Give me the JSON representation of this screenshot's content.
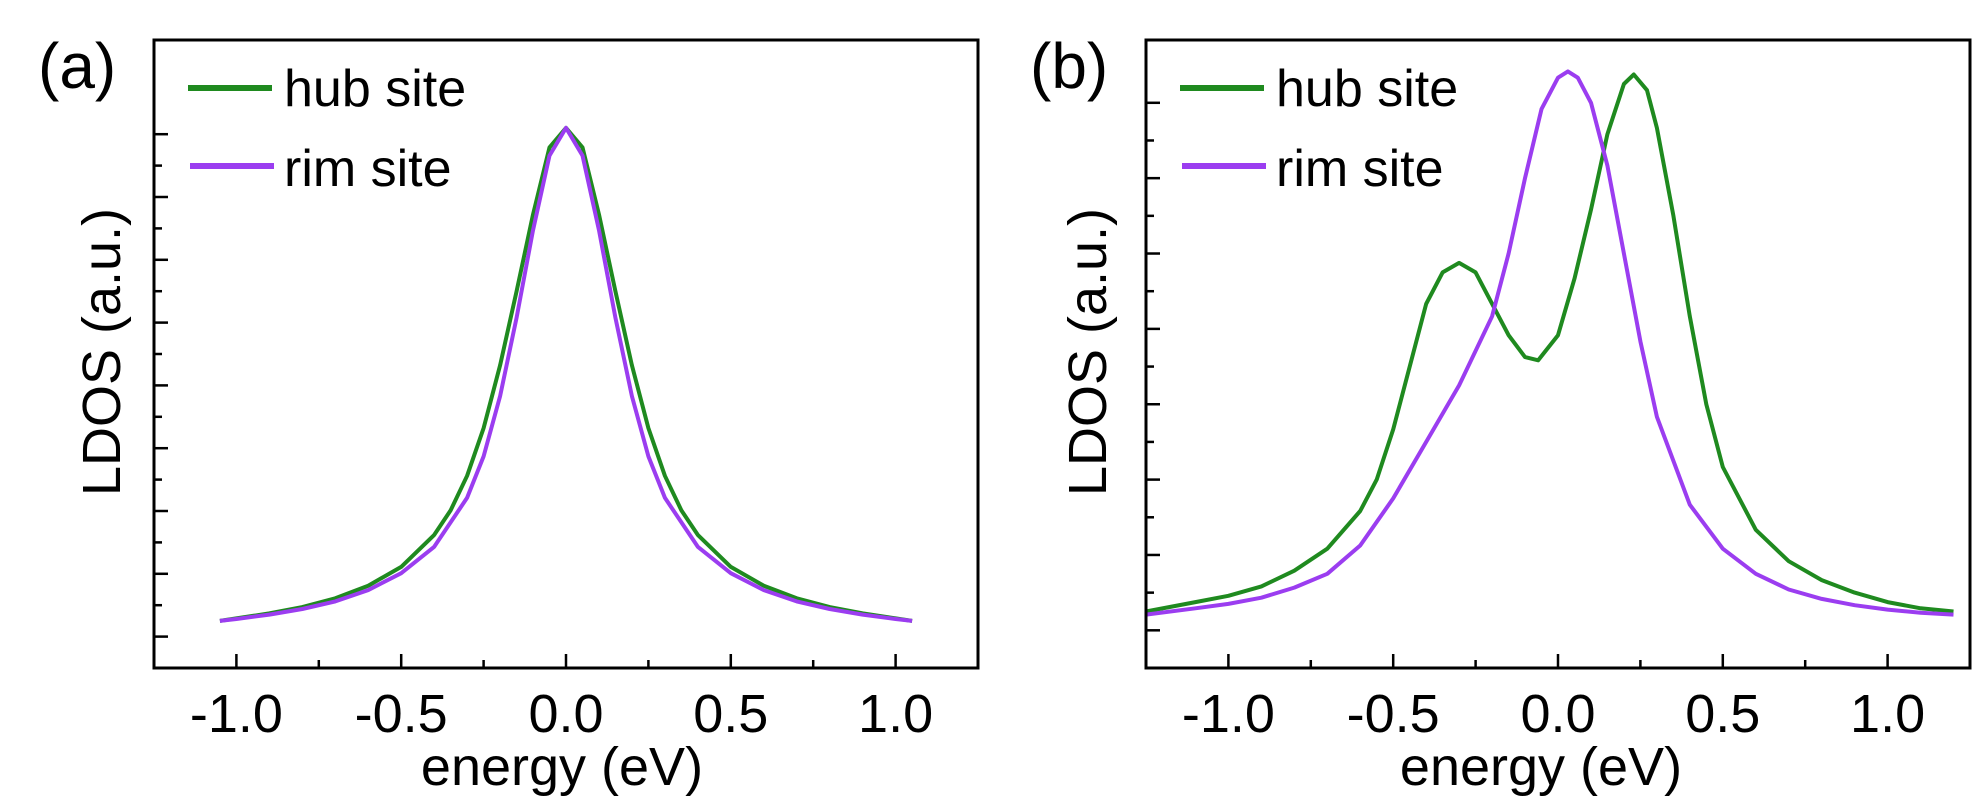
{
  "chart_data": [
    {
      "type": "line",
      "panel_label": "(a)",
      "xlabel": "energy (eV)",
      "ylabel": "LDOS (a.u.)",
      "xlim": [
        -1.25,
        1.25
      ],
      "ylim": [
        0.0,
        1.0
      ],
      "x_ticks": [
        -1.0,
        -0.5,
        0.0,
        0.5,
        1.0
      ],
      "x_tick_labels": [
        "-1.0",
        "-0.5",
        "0.0",
        "0.5",
        "1.0"
      ],
      "y_ticks": [
        0.05,
        0.15,
        0.25,
        0.35,
        0.45,
        0.55,
        0.65,
        0.75,
        0.85
      ],
      "legend_position": "top-left",
      "series": [
        {
          "name": "hub site",
          "color": "#1f8a1f",
          "x": [
            -1.05,
            -1.0,
            -0.9,
            -0.8,
            -0.7,
            -0.6,
            -0.5,
            -0.4,
            -0.35,
            -0.3,
            -0.25,
            -0.2,
            -0.15,
            -0.1,
            -0.05,
            0.0,
            0.05,
            0.1,
            0.15,
            0.2,
            0.25,
            0.3,
            0.35,
            0.4,
            0.5,
            0.6,
            0.7,
            0.8,
            0.9,
            1.0,
            1.05
          ],
          "y": [
            0.075,
            0.079,
            0.087,
            0.097,
            0.111,
            0.131,
            0.161,
            0.212,
            0.251,
            0.306,
            0.382,
            0.482,
            0.6,
            0.722,
            0.829,
            0.86,
            0.829,
            0.722,
            0.6,
            0.482,
            0.382,
            0.306,
            0.251,
            0.212,
            0.161,
            0.131,
            0.111,
            0.097,
            0.087,
            0.079,
            0.075
          ]
        },
        {
          "name": "rim site",
          "color": "#9b3df0",
          "x": [
            -1.05,
            -1.0,
            -0.9,
            -0.8,
            -0.7,
            -0.6,
            -0.5,
            -0.4,
            -0.3,
            -0.25,
            -0.2,
            -0.15,
            -0.1,
            -0.05,
            0.0,
            0.05,
            0.1,
            0.15,
            0.2,
            0.25,
            0.3,
            0.4,
            0.5,
            0.6,
            0.7,
            0.8,
            0.9,
            1.0,
            1.05
          ],
          "y": [
            0.075,
            0.078,
            0.085,
            0.094,
            0.106,
            0.124,
            0.151,
            0.193,
            0.271,
            0.337,
            0.433,
            0.558,
            0.697,
            0.816,
            0.86,
            0.816,
            0.697,
            0.558,
            0.433,
            0.337,
            0.271,
            0.193,
            0.151,
            0.124,
            0.106,
            0.094,
            0.085,
            0.078,
            0.075
          ]
        }
      ]
    },
    {
      "type": "line",
      "panel_label": "(b)",
      "xlabel": "energy (eV)",
      "ylabel": "LDOS (a.u.)",
      "xlim": [
        -1.25,
        1.25
      ],
      "ylim": [
        0.0,
        1.0
      ],
      "x_ticks": [
        -1.0,
        -0.5,
        0.0,
        0.5,
        1.0
      ],
      "x_tick_labels": [
        "-1.0",
        "-0.5",
        "0.0",
        "0.5",
        "1.0"
      ],
      "y_ticks": [
        0.06,
        0.18,
        0.3,
        0.42,
        0.54,
        0.66,
        0.78,
        0.9
      ],
      "legend_position": "top-left",
      "series": [
        {
          "name": "hub site",
          "color": "#1f8a1f",
          "x": [
            -1.25,
            -1.1,
            -1.0,
            -0.9,
            -0.8,
            -0.7,
            -0.6,
            -0.55,
            -0.5,
            -0.45,
            -0.4,
            -0.35,
            -0.3,
            -0.25,
            -0.2,
            -0.15,
            -0.1,
            -0.06,
            0.0,
            0.05,
            0.1,
            0.15,
            0.2,
            0.23,
            0.27,
            0.3,
            0.35,
            0.4,
            0.45,
            0.5,
            0.6,
            0.7,
            0.8,
            0.9,
            1.0,
            1.1,
            1.2
          ],
          "y": [
            0.09,
            0.105,
            0.115,
            0.13,
            0.155,
            0.19,
            0.25,
            0.3,
            0.38,
            0.48,
            0.58,
            0.63,
            0.645,
            0.63,
            0.58,
            0.53,
            0.495,
            0.49,
            0.53,
            0.62,
            0.73,
            0.85,
            0.93,
            0.945,
            0.92,
            0.86,
            0.72,
            0.56,
            0.42,
            0.32,
            0.22,
            0.17,
            0.14,
            0.12,
            0.105,
            0.095,
            0.09
          ]
        },
        {
          "name": "rim site",
          "color": "#9b3df0",
          "x": [
            -1.25,
            -1.1,
            -1.0,
            -0.9,
            -0.8,
            -0.7,
            -0.6,
            -0.5,
            -0.4,
            -0.3,
            -0.2,
            -0.15,
            -0.1,
            -0.05,
            0.0,
            0.03,
            0.06,
            0.1,
            0.15,
            0.2,
            0.25,
            0.3,
            0.4,
            0.5,
            0.6,
            0.7,
            0.8,
            0.9,
            1.0,
            1.1,
            1.2
          ],
          "y": [
            0.085,
            0.095,
            0.102,
            0.112,
            0.128,
            0.15,
            0.195,
            0.27,
            0.36,
            0.45,
            0.56,
            0.66,
            0.78,
            0.89,
            0.94,
            0.95,
            0.94,
            0.9,
            0.8,
            0.66,
            0.52,
            0.4,
            0.26,
            0.19,
            0.15,
            0.125,
            0.11,
            0.1,
            0.093,
            0.088,
            0.085
          ]
        }
      ]
    }
  ]
}
